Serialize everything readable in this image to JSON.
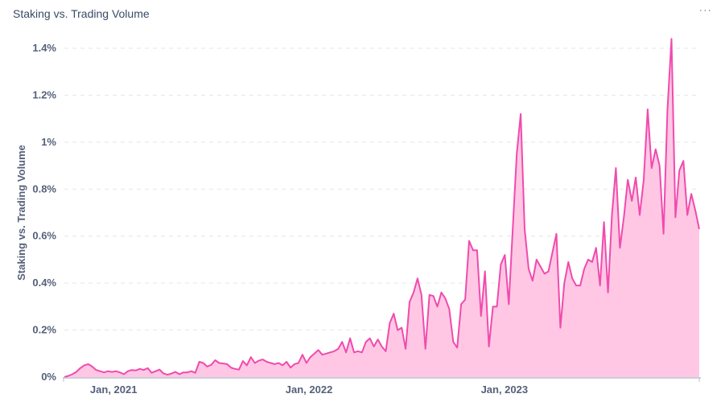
{
  "header": {
    "title": "Staking vs. Trading Volume",
    "menu_icon": "more-horizontal-icon",
    "menu_glyph": "···"
  },
  "colors": {
    "line": "#f04bad",
    "fill": "#ffc7e4",
    "grid": "#e3e6ec",
    "axis": "#55607a"
  },
  "chart_data": {
    "type": "area",
    "title": "Staking vs. Trading Volume",
    "xlabel": "",
    "ylabel": "Staking vs. Trading Volume",
    "ylim": [
      0,
      1.4
    ],
    "y_unit": "%",
    "y_ticks": [
      "0%",
      "0.2%",
      "0.4%",
      "0.6%",
      "0.8%",
      "1%",
      "1.2%",
      "1.4%"
    ],
    "x_ticks": [
      {
        "label": "Jan, 2021",
        "date": "2021-01-01"
      },
      {
        "label": "Jan, 2022",
        "date": "2022-01-01"
      },
      {
        "label": "Jan, 2023",
        "date": "2023-01-01"
      }
    ],
    "x_start": "2020-10-01",
    "x_end": "2023-12-31",
    "grid": true,
    "legend": "none",
    "series": [
      {
        "values": [
          0,
          0.005,
          0.012,
          0.022,
          0.038,
          0.05,
          0.055,
          0.045,
          0.03,
          0.025,
          0.02,
          0.025,
          0.022,
          0.025,
          0.02,
          0.012,
          0.025,
          0.03,
          0.028,
          0.035,
          0.03,
          0.038,
          0.018,
          0.025,
          0.032,
          0.015,
          0.01,
          0.015,
          0.022,
          0.012,
          0.02,
          0.02,
          0.025,
          0.018,
          0.065,
          0.06,
          0.045,
          0.052,
          0.072,
          0.06,
          0.058,
          0.055,
          0.04,
          0.035,
          0.032,
          0.068,
          0.05,
          0.085,
          0.06,
          0.07,
          0.075,
          0.065,
          0.06,
          0.055,
          0.06,
          0.05,
          0.065,
          0.04,
          0.055,
          0.06,
          0.095,
          0.06,
          0.085,
          0.1,
          0.115,
          0.095,
          0.1,
          0.105,
          0.11,
          0.12,
          0.15,
          0.105,
          0.165,
          0.105,
          0.11,
          0.105,
          0.15,
          0.165,
          0.13,
          0.16,
          0.13,
          0.11,
          0.23,
          0.27,
          0.2,
          0.21,
          0.12,
          0.32,
          0.36,
          0.42,
          0.35,
          0.12,
          0.35,
          0.345,
          0.3,
          0.36,
          0.335,
          0.29,
          0.15,
          0.125,
          0.31,
          0.33,
          0.58,
          0.54,
          0.54,
          0.26,
          0.45,
          0.13,
          0.3,
          0.3,
          0.48,
          0.52,
          0.31,
          0.63,
          0.95,
          1.12,
          0.63,
          0.46,
          0.41,
          0.5,
          0.47,
          0.44,
          0.45,
          0.53,
          0.61,
          0.21,
          0.4,
          0.49,
          0.42,
          0.39,
          0.39,
          0.46,
          0.5,
          0.49,
          0.55,
          0.39,
          0.66,
          0.36,
          0.69,
          0.89,
          0.55,
          0.68,
          0.84,
          0.75,
          0.85,
          0.69,
          0.84,
          1.14,
          0.89,
          0.97,
          0.9,
          0.61,
          1.14,
          1.44,
          0.68,
          0.88,
          0.92,
          0.69,
          0.78,
          0.71,
          0.63
        ]
      }
    ]
  }
}
